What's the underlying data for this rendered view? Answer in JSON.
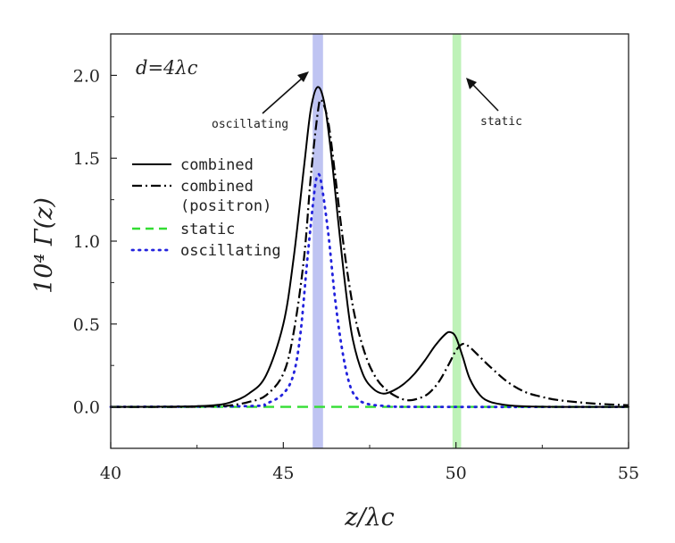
{
  "chart_data": {
    "type": "line",
    "xlim": [
      40,
      55
    ],
    "ylim": [
      -0.25,
      2.25
    ],
    "xticks": [
      40,
      45,
      50,
      55
    ],
    "xtick_labels": [
      "40",
      "45",
      "50",
      "55"
    ],
    "yticks": [
      0.0,
      0.5,
      1.0,
      1.5,
      2.0
    ],
    "ytick_labels": [
      "0.0",
      "0.5",
      "1.0",
      "1.5",
      "2.0"
    ],
    "xlabel": "z/λc",
    "ylabel": "10⁴ Γ(z)",
    "grid": false,
    "legend_position": "left",
    "annotations": {
      "parameter": "d=4λc",
      "oscillating": "oscillating",
      "static": "static"
    },
    "bands": [
      {
        "name": "oscillating",
        "x0": 45.85,
        "x1": 46.15,
        "color": "#aab0ee"
      },
      {
        "name": "static",
        "x0": 49.9,
        "x1": 50.15,
        "color": "#a8eea0"
      }
    ],
    "series": [
      {
        "name": "combined",
        "style": "solid",
        "color": "#000000",
        "x": [
          40,
          42,
          43,
          43.5,
          44,
          44.5,
          45,
          45.3,
          45.6,
          45.8,
          46,
          46.2,
          46.4,
          46.6,
          46.8,
          47,
          47.3,
          47.6,
          47.9,
          48.2,
          48.5,
          48.8,
          49.1,
          49.4,
          49.7,
          49.85,
          50,
          50.2,
          50.4,
          50.7,
          51,
          51.5,
          52,
          53,
          55
        ],
        "y": [
          0.0,
          0.002,
          0.01,
          0.03,
          0.08,
          0.19,
          0.5,
          0.9,
          1.45,
          1.8,
          1.93,
          1.82,
          1.5,
          1.1,
          0.72,
          0.42,
          0.2,
          0.11,
          0.08,
          0.1,
          0.14,
          0.2,
          0.28,
          0.37,
          0.44,
          0.45,
          0.42,
          0.3,
          0.17,
          0.07,
          0.03,
          0.01,
          0.003,
          0.0,
          0.0
        ]
      },
      {
        "name": "combined (positron)",
        "style": "dashdot",
        "color": "#000000",
        "x": [
          40,
          42,
          43,
          43.5,
          44,
          44.5,
          45,
          45.3,
          45.6,
          45.8,
          46,
          46.1,
          46.3,
          46.5,
          46.7,
          46.9,
          47.1,
          47.4,
          47.7,
          48,
          48.3,
          48.6,
          48.9,
          49.2,
          49.5,
          49.8,
          50,
          50.2,
          50.4,
          50.7,
          51,
          51.5,
          52,
          52.5,
          53,
          54,
          55
        ],
        "y": [
          0.0,
          0.0,
          0.003,
          0.01,
          0.03,
          0.07,
          0.2,
          0.45,
          0.9,
          1.4,
          1.78,
          1.85,
          1.72,
          1.4,
          1.05,
          0.75,
          0.52,
          0.3,
          0.17,
          0.1,
          0.06,
          0.04,
          0.05,
          0.08,
          0.15,
          0.26,
          0.34,
          0.38,
          0.36,
          0.3,
          0.24,
          0.15,
          0.09,
          0.06,
          0.04,
          0.02,
          0.01
        ]
      },
      {
        "name": "static",
        "style": "dashed",
        "color": "#33dd33",
        "x": [
          40,
          55
        ],
        "y": [
          0.0,
          0.0
        ]
      },
      {
        "name": "oscillating",
        "style": "dotted",
        "color": "#2222dd",
        "x": [
          40,
          44,
          44.5,
          45,
          45.3,
          45.5,
          45.7,
          45.9,
          46,
          46.1,
          46.3,
          46.5,
          46.7,
          46.9,
          47.1,
          47.4,
          48,
          49,
          55
        ],
        "y": [
          0.0,
          0.005,
          0.02,
          0.08,
          0.2,
          0.45,
          0.9,
          1.3,
          1.4,
          1.35,
          1.05,
          0.65,
          0.35,
          0.15,
          0.06,
          0.02,
          0.005,
          0.0,
          0.0
        ]
      }
    ]
  },
  "legend": {
    "items": [
      {
        "label": "combined"
      },
      {
        "label": "combined"
      },
      {
        "label": "(positron)"
      },
      {
        "label": "static"
      },
      {
        "label": "oscillating"
      }
    ]
  }
}
